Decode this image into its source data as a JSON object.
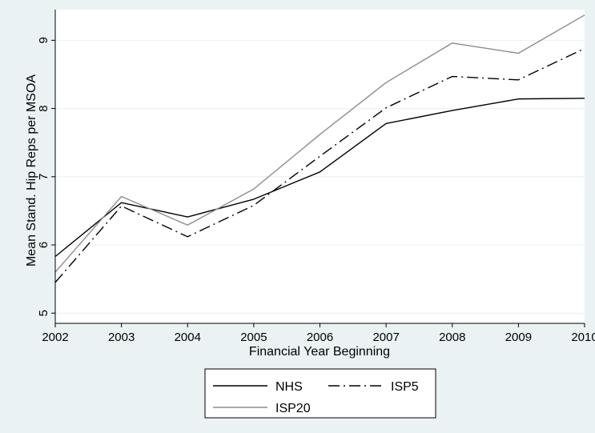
{
  "chart_data": {
    "type": "line",
    "xlabel": "Financial Year Beginning",
    "ylabel": "Mean Stand. Hip Reps per MSOA",
    "x": [
      2002,
      2003,
      2004,
      2005,
      2006,
      2007,
      2008,
      2009,
      2010
    ],
    "xlim": [
      2002,
      2010
    ],
    "ylim": [
      4.85,
      9.45
    ],
    "yticks": [
      5,
      6,
      7,
      8,
      9
    ],
    "grid": "horizontal",
    "legend_position": "bottom",
    "background_color": "#eaf2f3",
    "series": [
      {
        "name": "NHS",
        "values": [
          5.83,
          6.62,
          6.41,
          6.67,
          7.07,
          7.78,
          7.97,
          8.14,
          8.15
        ],
        "color": "#000000",
        "style": "solid"
      },
      {
        "name": "ISP5",
        "values": [
          5.45,
          6.57,
          6.12,
          6.58,
          7.3,
          8.01,
          8.47,
          8.42,
          8.88
        ],
        "color": "#000000",
        "style": "dash-dot"
      },
      {
        "name": "ISP20",
        "values": [
          5.6,
          6.71,
          6.29,
          6.82,
          7.62,
          8.38,
          8.96,
          8.81,
          9.37
        ],
        "color": "#8c8c8c",
        "style": "solid"
      }
    ]
  }
}
